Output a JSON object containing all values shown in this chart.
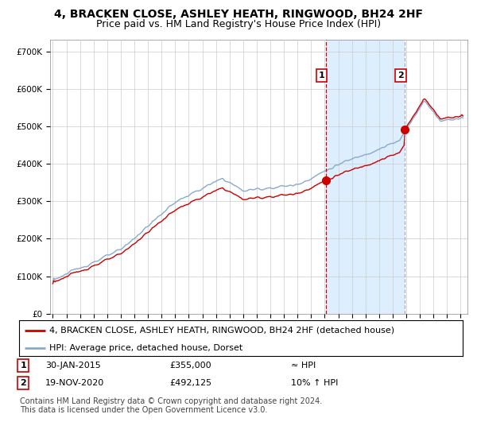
{
  "title": "4, BRACKEN CLOSE, ASHLEY HEATH, RINGWOOD, BH24 2HF",
  "subtitle": "Price paid vs. HM Land Registry's House Price Index (HPI)",
  "ylabel_ticks": [
    "£0",
    "£100K",
    "£200K",
    "£300K",
    "£400K",
    "£500K",
    "£600K",
    "£700K"
  ],
  "ylim": [
    0,
    730000
  ],
  "xlim_start": 1994.8,
  "xlim_end": 2025.5,
  "xticks": [
    1995,
    1996,
    1997,
    1998,
    1999,
    2000,
    2001,
    2002,
    2003,
    2004,
    2005,
    2006,
    2007,
    2008,
    2009,
    2010,
    2011,
    2012,
    2013,
    2014,
    2015,
    2016,
    2017,
    2018,
    2019,
    2020,
    2021,
    2022,
    2023,
    2024,
    2025
  ],
  "sale1_x": 2015.08,
  "sale1_y": 355000,
  "sale2_x": 2020.89,
  "sale2_y": 492125,
  "sale1_label": "1",
  "sale2_label": "2",
  "vline1_x": 2015.08,
  "vline2_x": 2020.89,
  "legend_line1": "4, BRACKEN CLOSE, ASHLEY HEATH, RINGWOOD, BH24 2HF (detached house)",
  "legend_line2": "HPI: Average price, detached house, Dorset",
  "annotation1": [
    "1",
    "30-JAN-2015",
    "£355,000",
    "≈ HPI"
  ],
  "annotation2": [
    "2",
    "19-NOV-2020",
    "£492,125",
    "10% ↑ HPI"
  ],
  "footer": "Contains HM Land Registry data © Crown copyright and database right 2024.\nThis data is licensed under the Open Government Licence v3.0.",
  "line_color_red": "#cc0000",
  "line_color_blue": "#88aacc",
  "shade_color": "#ddeeff",
  "background_color": "#ffffff",
  "grid_color": "#cccccc",
  "vline1_color": "#cc0000",
  "vline2_color": "#aaaacc",
  "title_fontsize": 10,
  "subtitle_fontsize": 9,
  "tick_fontsize": 7.5,
  "legend_fontsize": 8,
  "annotation_fontsize": 8,
  "footer_fontsize": 7
}
